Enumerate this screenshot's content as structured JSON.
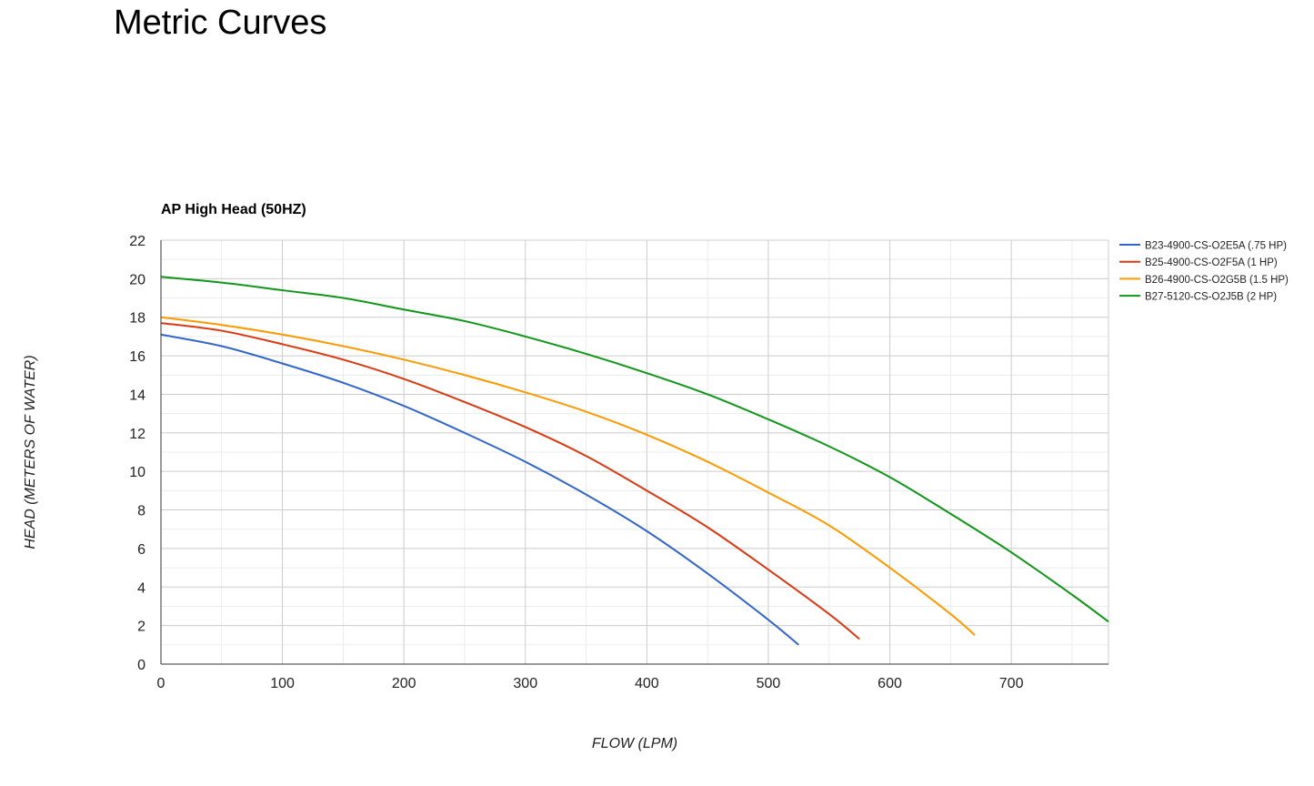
{
  "page": {
    "heading": "Metric Curves"
  },
  "chart_data": {
    "type": "line",
    "title": "AP High Head (50HZ)",
    "xlabel": "FLOW (LPM)",
    "ylabel": "HEAD (METERS OF WATER)",
    "xlim": [
      0,
      780
    ],
    "ylim": [
      0,
      22
    ],
    "x_ticks": [
      0,
      100,
      200,
      300,
      400,
      500,
      600,
      700
    ],
    "y_ticks": [
      0,
      2,
      4,
      6,
      8,
      10,
      12,
      14,
      16,
      18,
      20,
      22
    ],
    "x_minor_step": 50,
    "y_minor_step": 1,
    "grid": true,
    "legend_position": "right",
    "series": [
      {
        "name": "B23-4900-CS-O2E5A (.75 HP)",
        "color": "#3366cc",
        "x": [
          0,
          50,
          100,
          150,
          200,
          250,
          300,
          350,
          400,
          450,
          500,
          525
        ],
        "y": [
          17.1,
          16.5,
          15.6,
          14.6,
          13.4,
          12.0,
          10.5,
          8.8,
          6.9,
          4.7,
          2.3,
          1.0
        ]
      },
      {
        "name": "B25-4900-CS-O2F5A (1 HP)",
        "color": "#dc3912",
        "x": [
          0,
          50,
          100,
          150,
          200,
          250,
          300,
          350,
          400,
          450,
          500,
          550,
          575
        ],
        "y": [
          17.7,
          17.3,
          16.6,
          15.8,
          14.8,
          13.6,
          12.3,
          10.8,
          9.0,
          7.1,
          4.9,
          2.6,
          1.3
        ]
      },
      {
        "name": "B26-4900-CS-O2G5B (1.5 HP)",
        "color": "#ff9900",
        "x": [
          0,
          50,
          100,
          150,
          200,
          250,
          300,
          350,
          400,
          450,
          500,
          550,
          600,
          650,
          670
        ],
        "y": [
          18.0,
          17.6,
          17.1,
          16.5,
          15.8,
          15.0,
          14.1,
          13.1,
          11.9,
          10.5,
          8.9,
          7.2,
          5.0,
          2.6,
          1.5
        ]
      },
      {
        "name": "B27-5120-CS-O2J5B (2 HP)",
        "color": "#109618",
        "x": [
          0,
          50,
          100,
          150,
          200,
          250,
          300,
          350,
          400,
          450,
          500,
          550,
          600,
          650,
          700,
          750,
          780
        ],
        "y": [
          20.1,
          19.8,
          19.4,
          19.0,
          18.4,
          17.8,
          17.0,
          16.1,
          15.1,
          14.0,
          12.7,
          11.3,
          9.7,
          7.8,
          5.8,
          3.6,
          2.2
        ]
      }
    ]
  }
}
